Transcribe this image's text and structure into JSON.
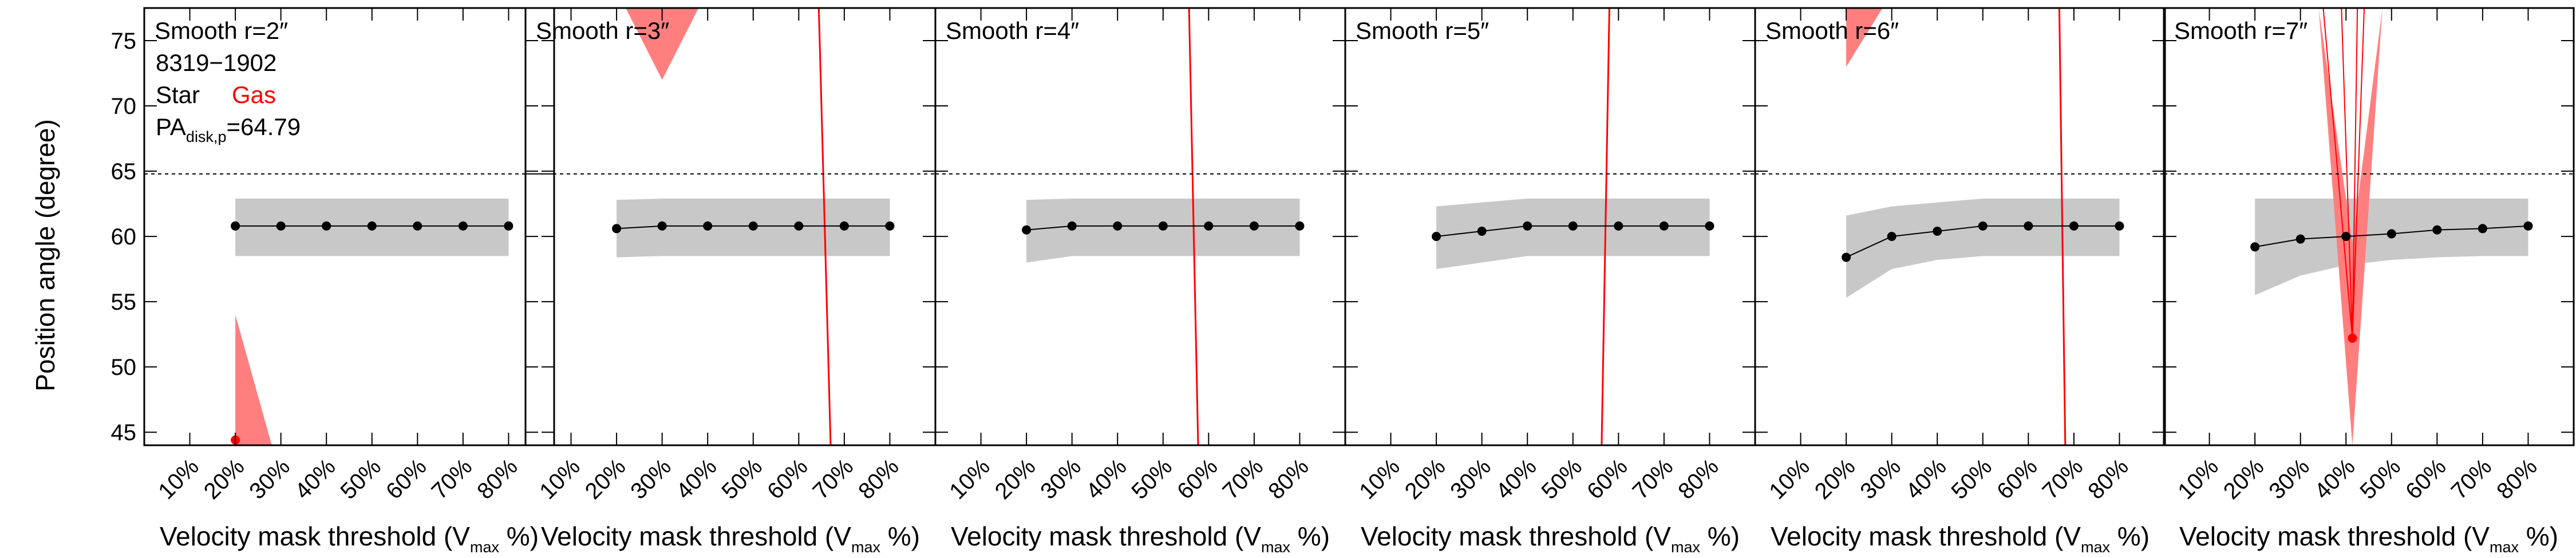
{
  "figure": {
    "ylabel": "Position angle (degree)",
    "xlabel": "Velocity mask threshold (V",
    "xlabel_sub": "max",
    "xlabel_end": " %)",
    "galaxy": "8319−1902",
    "legend_star": "Star",
    "legend_gas": "Gas",
    "pa_label": "PA",
    "pa_sub": "disk,p",
    "pa_value": "=64.79",
    "star_color": "#000000",
    "gas_color": "#ff0000",
    "band_color": "#c8c8c8",
    "gas_band_color": "#ff7f7f"
  },
  "chart_data": [
    {
      "type": "line",
      "title": "Smooth r=2″",
      "xlim": [
        0,
        90
      ],
      "ylim": [
        44,
        77.5
      ],
      "xticks": [
        10,
        20,
        30,
        40,
        50,
        60,
        70,
        80
      ],
      "xtick_labels": [
        "10%",
        "20%",
        "30%",
        "40%",
        "50%",
        "60%",
        "70%",
        "80%"
      ],
      "yticks": [
        45,
        50,
        55,
        60,
        65,
        70,
        75
      ],
      "ytick_labels": [
        "45",
        "50",
        "55",
        "60",
        "65",
        "70",
        "75"
      ],
      "reference_line": 64.79,
      "series": [
        {
          "name": "Star",
          "x": [
            20,
            30,
            40,
            50,
            60,
            70,
            80
          ],
          "y": [
            60.8,
            60.8,
            60.8,
            60.8,
            60.8,
            60.8,
            60.8
          ],
          "lower": [
            58.5,
            58.5,
            58.5,
            58.5,
            58.5,
            58.5,
            58.5
          ],
          "upper": [
            62.9,
            62.9,
            62.9,
            62.9,
            62.9,
            62.9,
            62.9
          ]
        },
        {
          "name": "Gas",
          "x": [
            20
          ],
          "y": [
            44.4
          ],
          "band_x": [
            20,
            20,
            28
          ],
          "band_y": [
            54,
            44,
            44
          ]
        }
      ]
    },
    {
      "type": "line",
      "title": "Smooth r=3″",
      "xlim": [
        0,
        90
      ],
      "ylim": [
        44,
        77.5
      ],
      "xticks": [
        10,
        20,
        30,
        40,
        50,
        60,
        70,
        80
      ],
      "xtick_labels": [
        "10%",
        "20%",
        "30%",
        "40%",
        "50%",
        "60%",
        "70%",
        "80%"
      ],
      "yticks": [
        45,
        50,
        55,
        60,
        65,
        70,
        75
      ],
      "reference_line": 64.79,
      "series": [
        {
          "name": "Star",
          "x": [
            20,
            30,
            40,
            50,
            60,
            70,
            80
          ],
          "y": [
            60.6,
            60.8,
            60.8,
            60.8,
            60.8,
            60.8,
            60.8
          ],
          "lower": [
            58.4,
            58.5,
            58.5,
            58.5,
            58.5,
            58.5,
            58.5
          ],
          "upper": [
            62.8,
            62.9,
            62.9,
            62.9,
            62.9,
            62.9,
            62.9
          ]
        },
        {
          "name": "Gas",
          "line_x": [
            67,
            64.4
          ],
          "line_y": [
            44,
            77.5
          ],
          "band_x": [
            22,
            30,
            38
          ],
          "band_y": [
            77.5,
            72,
            77.5
          ]
        }
      ]
    },
    {
      "type": "line",
      "title": "Smooth r=4″",
      "xlim": [
        0,
        90
      ],
      "ylim": [
        44,
        77.5
      ],
      "xticks": [
        10,
        20,
        30,
        40,
        50,
        60,
        70,
        80
      ],
      "xtick_labels": [
        "10%",
        "20%",
        "30%",
        "40%",
        "50%",
        "60%",
        "70%",
        "80%"
      ],
      "yticks": [
        45,
        50,
        55,
        60,
        65,
        70,
        75
      ],
      "reference_line": 64.79,
      "series": [
        {
          "name": "Star",
          "x": [
            20,
            30,
            40,
            50,
            60,
            70,
            80
          ],
          "y": [
            60.5,
            60.8,
            60.8,
            60.8,
            60.8,
            60.8,
            60.8
          ],
          "lower": [
            58.0,
            58.5,
            58.5,
            58.5,
            58.5,
            58.5,
            58.5
          ],
          "upper": [
            62.8,
            62.9,
            62.9,
            62.9,
            62.9,
            62.9,
            62.9
          ]
        },
        {
          "name": "Gas",
          "line_x": [
            57.7,
            55.7
          ],
          "line_y": [
            44,
            77.5
          ]
        }
      ]
    },
    {
      "type": "line",
      "title": "Smooth r=5″",
      "xlim": [
        0,
        90
      ],
      "ylim": [
        44,
        77.5
      ],
      "xticks": [
        10,
        20,
        30,
        40,
        50,
        60,
        70,
        80
      ],
      "xtick_labels": [
        "10%",
        "20%",
        "30%",
        "40%",
        "50%",
        "60%",
        "70%",
        "80%"
      ],
      "yticks": [
        45,
        50,
        55,
        60,
        65,
        70,
        75
      ],
      "reference_line": 64.79,
      "series": [
        {
          "name": "Star",
          "x": [
            20,
            30,
            40,
            50,
            60,
            70,
            80
          ],
          "y": [
            60.0,
            60.4,
            60.8,
            60.8,
            60.8,
            60.8,
            60.8
          ],
          "lower": [
            57.5,
            58.0,
            58.5,
            58.5,
            58.5,
            58.5,
            58.5
          ],
          "upper": [
            62.3,
            62.6,
            62.9,
            62.9,
            62.9,
            62.9,
            62.9
          ]
        },
        {
          "name": "Gas",
          "line_x": [
            56.3,
            58
          ],
          "line_y": [
            44,
            77.5
          ]
        }
      ]
    },
    {
      "type": "line",
      "title": "Smooth r=6″",
      "xlim": [
        0,
        90
      ],
      "ylim": [
        44,
        77.5
      ],
      "xticks": [
        10,
        20,
        30,
        40,
        50,
        60,
        70,
        80
      ],
      "xtick_labels": [
        "10%",
        "20%",
        "30%",
        "40%",
        "50%",
        "60%",
        "70%",
        "80%"
      ],
      "yticks": [
        45,
        50,
        55,
        60,
        65,
        70,
        75
      ],
      "reference_line": 64.79,
      "series": [
        {
          "name": "Star",
          "x": [
            20,
            30,
            40,
            50,
            60,
            70,
            80
          ],
          "y": [
            58.4,
            60.0,
            60.4,
            60.8,
            60.8,
            60.8,
            60.8
          ],
          "lower": [
            55.3,
            57.5,
            58.2,
            58.5,
            58.5,
            58.5,
            58.5
          ],
          "upper": [
            61.6,
            62.3,
            62.6,
            62.9,
            62.9,
            62.9,
            62.9
          ]
        },
        {
          "name": "Gas",
          "line_x": [
            68.1,
            66.8
          ],
          "line_y": [
            44,
            77.5
          ],
          "band_x": [
            20,
            20,
            28
          ],
          "band_y": [
            77.5,
            73,
            77.5
          ]
        }
      ]
    },
    {
      "type": "line",
      "title": "Smooth r=7″",
      "xlim": [
        0,
        90
      ],
      "ylim": [
        44,
        77.5
      ],
      "xticks": [
        10,
        20,
        30,
        40,
        50,
        60,
        70,
        80
      ],
      "xtick_labels": [
        "10%",
        "20%",
        "30%",
        "40%",
        "50%",
        "60%",
        "70%",
        "80%"
      ],
      "yticks": [
        45,
        50,
        55,
        60,
        65,
        70,
        75
      ],
      "reference_line": 64.79,
      "series": [
        {
          "name": "Star",
          "x": [
            20,
            30,
            40,
            50,
            60,
            70,
            80
          ],
          "y": [
            59.2,
            59.8,
            60.0,
            60.2,
            60.5,
            60.6,
            60.8
          ],
          "lower": [
            55.5,
            57.0,
            57.8,
            58.2,
            58.4,
            58.5,
            58.5
          ],
          "upper": [
            62.9,
            62.9,
            62.9,
            62.9,
            62.9,
            62.9,
            62.9
          ]
        },
        {
          "name": "Gas",
          "x": [
            41.4
          ],
          "y": [
            52.2
          ],
          "band_x": [
            34,
            41.4,
            48,
            41.4
          ],
          "band_y": [
            77.5,
            44,
            77.5,
            59.5
          ],
          "spike_x": [
            [
              41.4,
              35
            ],
            [
              41.4,
              39
            ],
            [
              41.4,
              42.5
            ],
            [
              41.4,
              44
            ]
          ],
          "spike_y": 77.5
        }
      ]
    }
  ]
}
